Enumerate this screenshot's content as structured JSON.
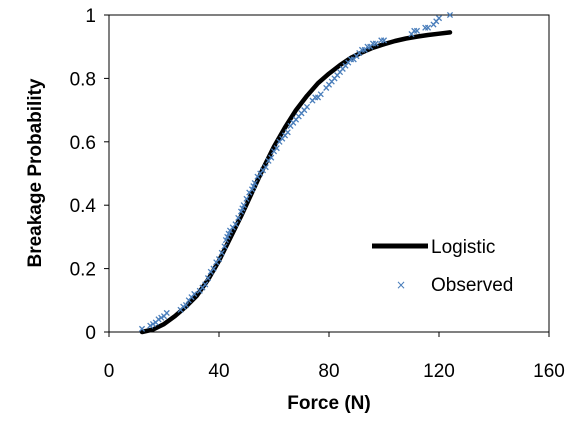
{
  "chart_data": {
    "type": "line",
    "title": "",
    "xlabel": "Force (N)",
    "ylabel": "Breakage Probability",
    "xlim": [
      0,
      160
    ],
    "ylim": [
      0,
      1
    ],
    "xticks": [
      0,
      40,
      80,
      120,
      160
    ],
    "yticks": [
      0,
      0.2,
      0.4,
      0.6,
      0.8,
      1
    ],
    "xtick_labels": [
      "0",
      "40",
      "80",
      "120",
      "160"
    ],
    "ytick_labels": [
      "0",
      "0.2",
      "0.4",
      "0.6",
      "0.8",
      "1"
    ],
    "grid": false,
    "legend_position": "bottom-right",
    "series": [
      {
        "name": "Logistic",
        "kind": "line",
        "color": "#000000",
        "x": [
          12,
          16,
          20,
          24,
          28,
          32,
          36,
          40,
          44,
          48,
          52,
          56,
          60,
          64,
          68,
          72,
          76,
          80,
          84,
          88,
          92,
          96,
          100,
          104,
          108,
          112,
          116,
          120,
          124
        ],
        "y": [
          0.0,
          0.008,
          0.025,
          0.05,
          0.08,
          0.115,
          0.165,
          0.225,
          0.295,
          0.365,
          0.44,
          0.515,
          0.585,
          0.645,
          0.7,
          0.745,
          0.785,
          0.815,
          0.842,
          0.865,
          0.882,
          0.897,
          0.908,
          0.918,
          0.926,
          0.932,
          0.937,
          0.941,
          0.945
        ]
      },
      {
        "name": "Observed",
        "kind": "scatter",
        "color": "#4a7ebb",
        "x": [
          12,
          15,
          16,
          17,
          18,
          19,
          20,
          21,
          26,
          27,
          28,
          29,
          30,
          31,
          33,
          34,
          35,
          36,
          37,
          38,
          39,
          40,
          41,
          42,
          42.5,
          43,
          43.5,
          44,
          45,
          46,
          47,
          48,
          48.5,
          49,
          50,
          51,
          52,
          52.5,
          53,
          54,
          55,
          56,
          57,
          58,
          59,
          60,
          61,
          62,
          63,
          64,
          65,
          66,
          67,
          68,
          69,
          70,
          71,
          72,
          74,
          75,
          76,
          77,
          79,
          80,
          81,
          82,
          83,
          84,
          85,
          86,
          87,
          88,
          89,
          90,
          91,
          92,
          93,
          94,
          95,
          96,
          97,
          99,
          100,
          110,
          111,
          112,
          115,
          116,
          118,
          119,
          120,
          124
        ],
        "y": [
          0.01,
          0.02,
          0.025,
          0.03,
          0.04,
          0.045,
          0.05,
          0.06,
          0.07,
          0.08,
          0.085,
          0.1,
          0.11,
          0.12,
          0.13,
          0.14,
          0.15,
          0.17,
          0.19,
          0.2,
          0.22,
          0.23,
          0.25,
          0.27,
          0.29,
          0.3,
          0.31,
          0.32,
          0.33,
          0.34,
          0.36,
          0.38,
          0.39,
          0.4,
          0.42,
          0.44,
          0.45,
          0.46,
          0.47,
          0.49,
          0.5,
          0.51,
          0.52,
          0.54,
          0.55,
          0.57,
          0.58,
          0.6,
          0.61,
          0.62,
          0.63,
          0.65,
          0.66,
          0.67,
          0.68,
          0.69,
          0.7,
          0.71,
          0.73,
          0.74,
          0.74,
          0.75,
          0.77,
          0.78,
          0.79,
          0.8,
          0.81,
          0.82,
          0.83,
          0.84,
          0.85,
          0.86,
          0.86,
          0.87,
          0.88,
          0.89,
          0.89,
          0.9,
          0.9,
          0.91,
          0.91,
          0.92,
          0.92,
          0.94,
          0.95,
          0.95,
          0.96,
          0.96,
          0.97,
          0.98,
          0.99,
          1.0
        ]
      }
    ]
  }
}
